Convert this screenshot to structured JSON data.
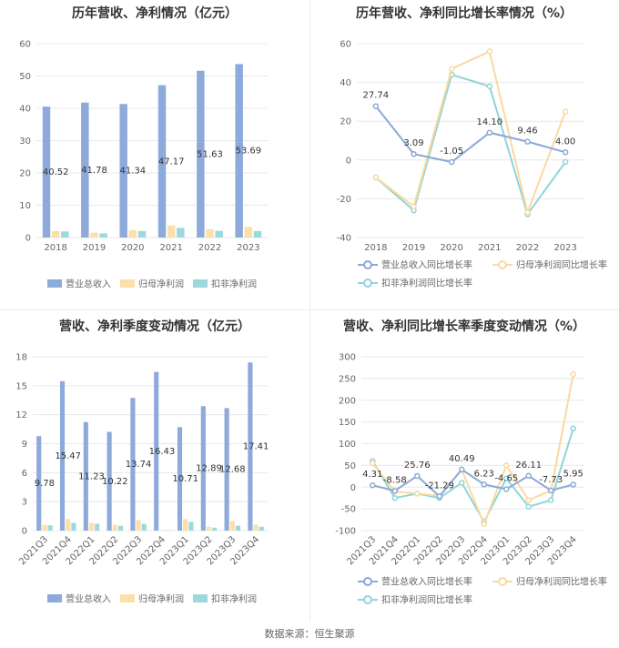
{
  "source": "数据来源：恒生聚源",
  "colors": {
    "revenue": "#8eaadb",
    "netprofit": "#fcdfa9",
    "deducted": "#9dd9dc",
    "revenue_line": "#8ba8d6",
    "netprofit_line": "#fbd9a0",
    "deducted_line": "#90d5d9",
    "grid": "#e8e8e8",
    "axis_text": "#666666"
  },
  "chart_data": [
    {
      "type": "bar",
      "title": "历年营收、净利情况（亿元）",
      "categories": [
        "2018",
        "2019",
        "2020",
        "2021",
        "2022",
        "2023"
      ],
      "ylim": [
        0,
        60
      ],
      "yticks": [
        "0",
        "10",
        "20",
        "30",
        "40",
        "50",
        "60"
      ],
      "series": [
        {
          "name": "营业总收入",
          "values": [
            40.52,
            41.78,
            41.34,
            47.17,
            51.63,
            53.69
          ],
          "labels": [
            "40.52",
            "41.78",
            "41.34",
            "47.17",
            "51.63",
            "53.69"
          ]
        },
        {
          "name": "归母净利润",
          "values": [
            2.0,
            1.5,
            2.3,
            3.7,
            2.6,
            3.3
          ]
        },
        {
          "name": "扣非净利润",
          "values": [
            1.9,
            1.3,
            2.0,
            3.0,
            2.1,
            2.0
          ]
        }
      ],
      "legend_position": "bottom"
    },
    {
      "type": "line",
      "title": "历年营收、净利同比增长率情况（%）",
      "categories": [
        "2018",
        "2019",
        "2020",
        "2021",
        "2022",
        "2023"
      ],
      "ylim": [
        -40,
        60
      ],
      "yticks": [
        "-40",
        "-20",
        "0",
        "20",
        "40",
        "60"
      ],
      "series": [
        {
          "name": "营业总收入同比增长率",
          "values": [
            27.74,
            3.09,
            -1.05,
            14.1,
            9.46,
            4.0
          ],
          "labels": [
            "27.74",
            "3.09",
            "-1.05",
            "14.10",
            "9.46",
            "4.00"
          ]
        },
        {
          "name": "归母净利润同比增长率",
          "values": [
            -9,
            -24,
            47,
            56,
            -27,
            25
          ]
        },
        {
          "name": "扣非净利润同比增长率",
          "values": [
            -9,
            -26,
            44,
            38,
            -28,
            -1
          ]
        }
      ],
      "legend_position": "bottom"
    },
    {
      "type": "bar",
      "title": "营收、净利季度变动情况（亿元）",
      "categories": [
        "2021Q3",
        "2021Q4",
        "2022Q1",
        "2022Q2",
        "2022Q3",
        "2022Q4",
        "2023Q1",
        "2023Q2",
        "2023Q3",
        "2023Q4"
      ],
      "ylim": [
        0,
        18
      ],
      "yticks": [
        "0",
        "3",
        "6",
        "9",
        "12",
        "15",
        "18"
      ],
      "series": [
        {
          "name": "营业总收入",
          "values": [
            9.78,
            15.47,
            11.23,
            10.22,
            13.74,
            16.43,
            10.71,
            12.89,
            12.68,
            17.41
          ],
          "labels": [
            "9.78",
            "15.47",
            "11.23",
            "10.22",
            "13.74",
            "16.43",
            "10.71",
            "12.89",
            "12.68",
            "17.41"
          ]
        },
        {
          "name": "归母净利润",
          "values": [
            0.6,
            1.2,
            0.8,
            0.6,
            1.1,
            0.05,
            1.2,
            0.4,
            1.0,
            0.6
          ]
        },
        {
          "name": "扣非净利润",
          "values": [
            0.55,
            0.8,
            0.7,
            0.5,
            0.7,
            0.05,
            0.9,
            0.3,
            0.5,
            0.4
          ]
        }
      ],
      "legend_position": "bottom"
    },
    {
      "type": "line",
      "title": "营收、净利同比增长率季度变动情况（%）",
      "categories": [
        "2021Q3",
        "2021Q4",
        "2022Q1",
        "2022Q2",
        "2022Q3",
        "2022Q4",
        "2023Q1",
        "2023Q2",
        "2023Q3",
        "2023Q4"
      ],
      "ylim": [
        -100,
        300
      ],
      "yticks": [
        "-100",
        "-50",
        "0",
        "50",
        "100",
        "150",
        "200",
        "250",
        "300"
      ],
      "series": [
        {
          "name": "营业总收入同比增长率",
          "values": [
            4.31,
            -8.58,
            25.76,
            -21.29,
            40.49,
            6.23,
            -4.65,
            26.11,
            -7.73,
            5.95
          ],
          "labels": [
            "4.31",
            "-8.58",
            "25.76",
            "-21.29",
            "40.49",
            "6.23",
            "-4.65",
            "26.11",
            "-7.73",
            "5.95"
          ]
        },
        {
          "name": "归母净利润同比增长率",
          "values": [
            55,
            -10,
            -15,
            -20,
            40,
            -85,
            50,
            -30,
            -8,
            260
          ]
        },
        {
          "name": "扣非净利润同比增长率",
          "values": [
            60,
            -25,
            -15,
            -25,
            10,
            -80,
            20,
            -45,
            -30,
            135
          ]
        }
      ],
      "legend_position": "bottom"
    }
  ]
}
